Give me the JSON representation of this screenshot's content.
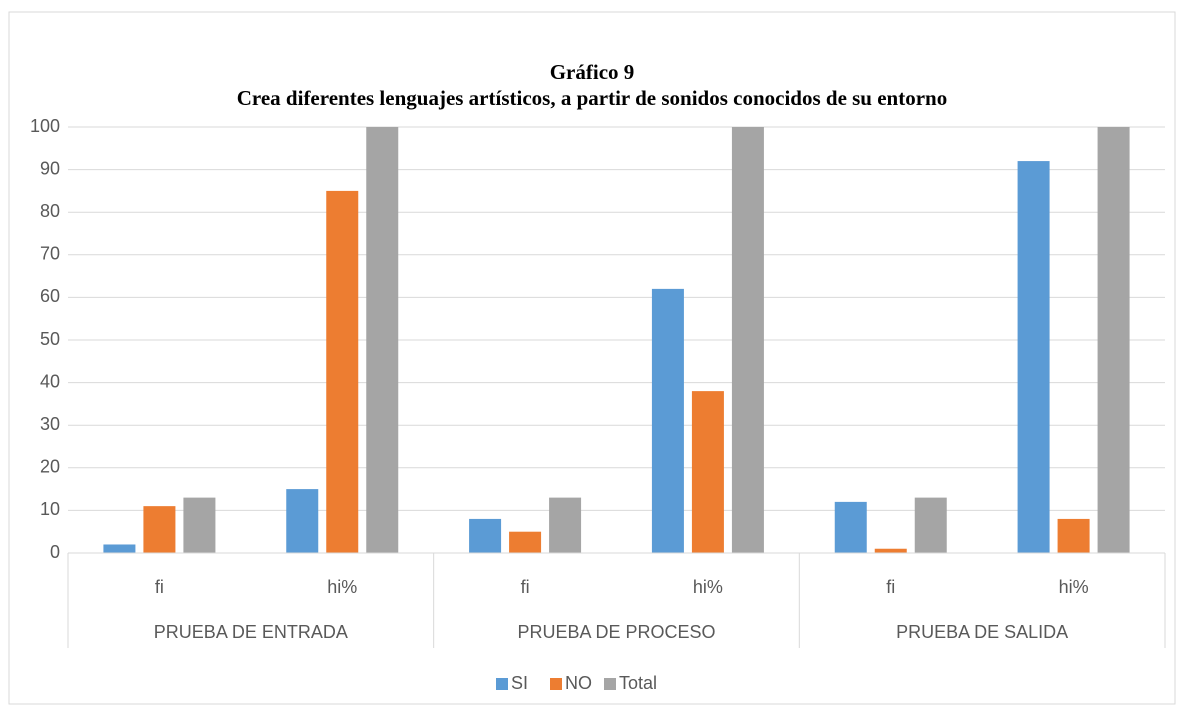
{
  "chart_data": {
    "type": "bar",
    "title": "Gráfico 9",
    "subtitle": "Crea diferentes lenguajes artísticos, a partir de sonidos conocidos de su entorno",
    "categories": [
      "fi",
      "hi%",
      "fi",
      "hi%",
      "fi",
      "hi%"
    ],
    "groups": [
      "PRUEBA DE ENTRADA",
      "PRUEBA DE PROCESO",
      "PRUEBA DE SALIDA"
    ],
    "series": [
      {
        "name": "SI",
        "color": "#5b9bd5",
        "values": [
          2,
          15,
          8,
          62,
          12,
          92
        ]
      },
      {
        "name": "NO",
        "color": "#ed7d31",
        "values": [
          11,
          85,
          5,
          38,
          1,
          8
        ]
      },
      {
        "name": "Total",
        "color": "#a5a5a5",
        "values": [
          13,
          100,
          13,
          100,
          13,
          100
        ]
      }
    ],
    "ylim": [
      0,
      100
    ],
    "yticks": [
      0,
      10,
      20,
      30,
      40,
      50,
      60,
      70,
      80,
      90,
      100
    ],
    "grid": true,
    "legend": "bottom"
  }
}
